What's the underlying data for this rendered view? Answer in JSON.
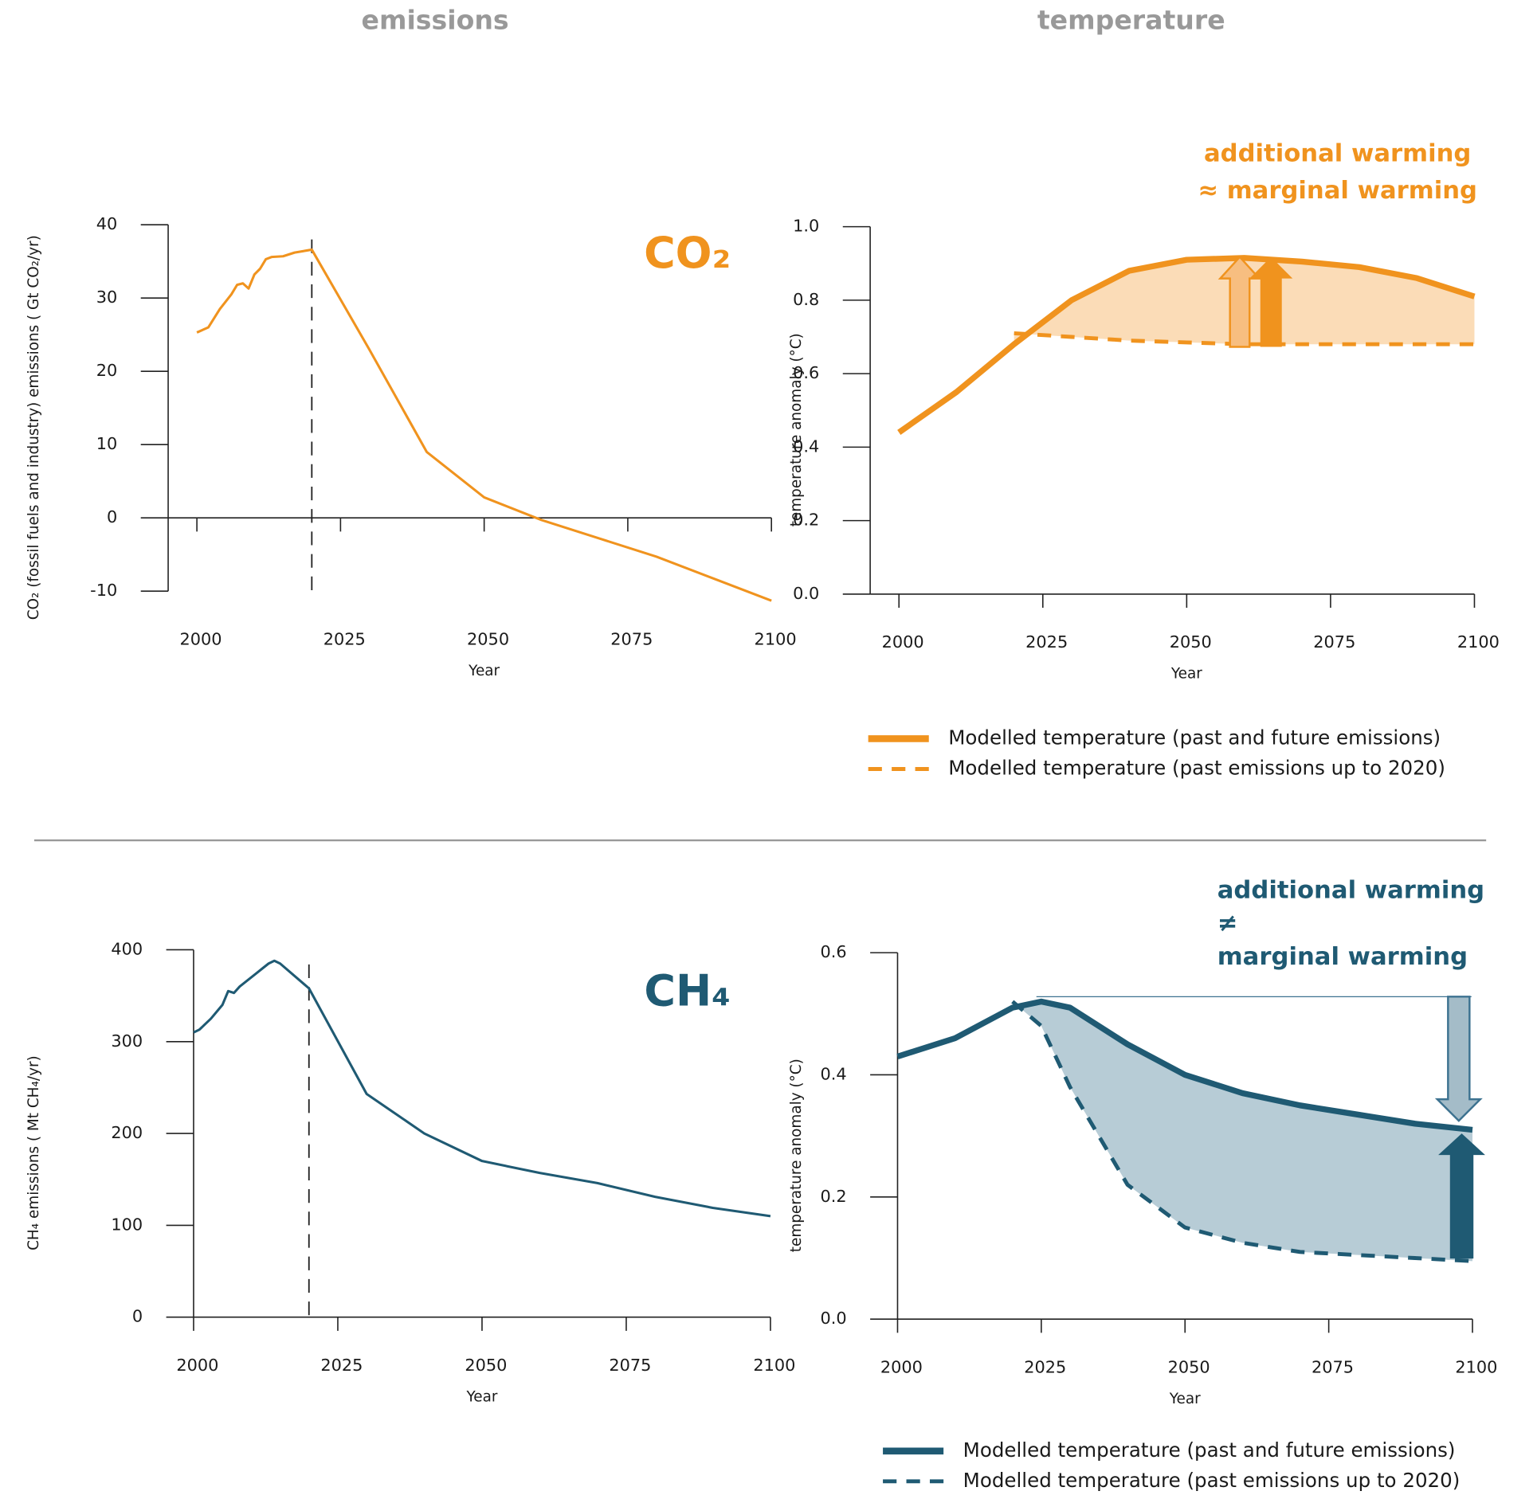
{
  "column_headers": [
    "emissions",
    "temperature"
  ],
  "chart_data": [
    {
      "type": "line",
      "title": "CO₂",
      "color": "#f0931e",
      "x_label": "Year",
      "y_label": "CO₂ (fossil fuels and industry) emissions ( Gt CO₂/yr)",
      "x": [
        2000,
        2002,
        2004,
        2006,
        2007,
        2008,
        2009,
        2010,
        2011,
        2012,
        2013,
        2015,
        2017,
        2020,
        2030,
        2040,
        2050,
        2060,
        2070,
        2080,
        2090,
        2100
      ],
      "series": [
        {
          "color": "#f0931e",
          "style": "solid",
          "values": [
            25.3,
            26,
            28.5,
            30.5,
            31.8,
            32,
            31.3,
            33.2,
            34,
            35.3,
            35.6,
            35.7,
            36.2,
            36.6,
            23,
            9,
            2.8,
            -0.3,
            -2.8,
            -5.3,
            -8.3,
            -11.3
          ]
        }
      ],
      "xlim": [
        1995,
        2100
      ],
      "xticks": [
        2000,
        2025,
        2050,
        2075,
        2100
      ],
      "ylim": [
        -10,
        40
      ],
      "yticks": [
        -10,
        0,
        10,
        20,
        30,
        40
      ],
      "vline": 2020
    },
    {
      "type": "line",
      "color": "#f0931e",
      "fill_color": "#fbdcb7",
      "x_label": "Year",
      "y_label": "temperature anomaly (°C)",
      "x": [
        2000,
        2010,
        2020,
        2030,
        2040,
        2050,
        2060,
        2070,
        2080,
        2090,
        2100
      ],
      "series": [
        {
          "name": "Modelled temperature (past and future emissions)",
          "color": "#f0931e",
          "style": "solid",
          "values": [
            0.44,
            0.55,
            0.68,
            0.8,
            0.88,
            0.91,
            0.915,
            0.905,
            0.89,
            0.86,
            0.81
          ]
        },
        {
          "name": "Modelled temperature (past emissions up to 2020)",
          "color": "#f0931e",
          "style": "dashed",
          "values": [
            null,
            null,
            0.71,
            0.7,
            0.69,
            0.685,
            0.68,
            0.68,
            0.68,
            0.68,
            0.68
          ]
        }
      ],
      "xlim": [
        1995,
        2100
      ],
      "xticks": [
        2000,
        2025,
        2050,
        2075,
        2100
      ],
      "ylim": [
        0,
        1
      ],
      "yticks": [
        {
          "value": 0,
          "label": "0.0"
        },
        0.2,
        0.4,
        0.6,
        0.8,
        {
          "value": 1,
          "label": "1.0"
        }
      ],
      "annotations": [
        "additional warming",
        "≈ marginal warming"
      ]
    },
    {
      "type": "line",
      "title": "CH₄",
      "color": "#1f5a73",
      "x_label": "Year",
      "y_label": "CH₄ emissions ( Mt CH₄/yr)",
      "x": [
        2000,
        2001,
        2003,
        2005,
        2006,
        2007,
        2008,
        2010,
        2011,
        2012,
        2013,
        2014,
        2015,
        2020,
        2030,
        2040,
        2050,
        2060,
        2070,
        2080,
        2090,
        2100
      ],
      "series": [
        {
          "color": "#1f5a73",
          "style": "solid",
          "values": [
            310,
            313,
            325,
            340,
            355,
            353,
            360,
            370,
            375,
            380,
            385,
            388,
            385,
            358,
            243,
            200,
            170,
            157,
            146,
            131,
            119,
            110
          ]
        }
      ],
      "xlim": [
        2000,
        2100
      ],
      "xticks": [
        2000,
        2025,
        2050,
        2075,
        2100
      ],
      "ylim": [
        0,
        400
      ],
      "yticks": [
        0,
        100,
        200,
        300,
        400
      ],
      "vline": 2020
    },
    {
      "type": "line",
      "color": "#1f5a73",
      "fill_color": "#b7ccd6",
      "x_label": "Year",
      "y_label": "temperature anomaly (°C)",
      "x": [
        2000,
        2010,
        2020,
        2025,
        2030,
        2040,
        2050,
        2060,
        2070,
        2080,
        2090,
        2100
      ],
      "series": [
        {
          "name": "Modelled temperature (past and future emissions)",
          "color": "#1f5a73",
          "style": "solid",
          "values": [
            0.43,
            0.46,
            0.51,
            0.52,
            0.51,
            0.45,
            0.4,
            0.37,
            0.35,
            0.335,
            0.32,
            0.31
          ]
        },
        {
          "name": "Modelled temperature (past emissions up to 2020)",
          "color": "#1f5a73",
          "style": "dashed",
          "values": [
            null,
            null,
            0.52,
            0.48,
            0.38,
            0.22,
            0.15,
            0.125,
            0.11,
            0.105,
            0.1,
            0.095
          ]
        }
      ],
      "xlim": [
        2000,
        2100
      ],
      "xticks": [
        2000,
        2025,
        2050,
        2075,
        2100
      ],
      "ylim": [
        0,
        0.6
      ],
      "yticks": [
        {
          "value": 0,
          "label": "0.0"
        },
        0.2,
        0.4,
        0.6
      ],
      "annotations": [
        "additional warming",
        "≠",
        "marginal warming"
      ]
    }
  ]
}
